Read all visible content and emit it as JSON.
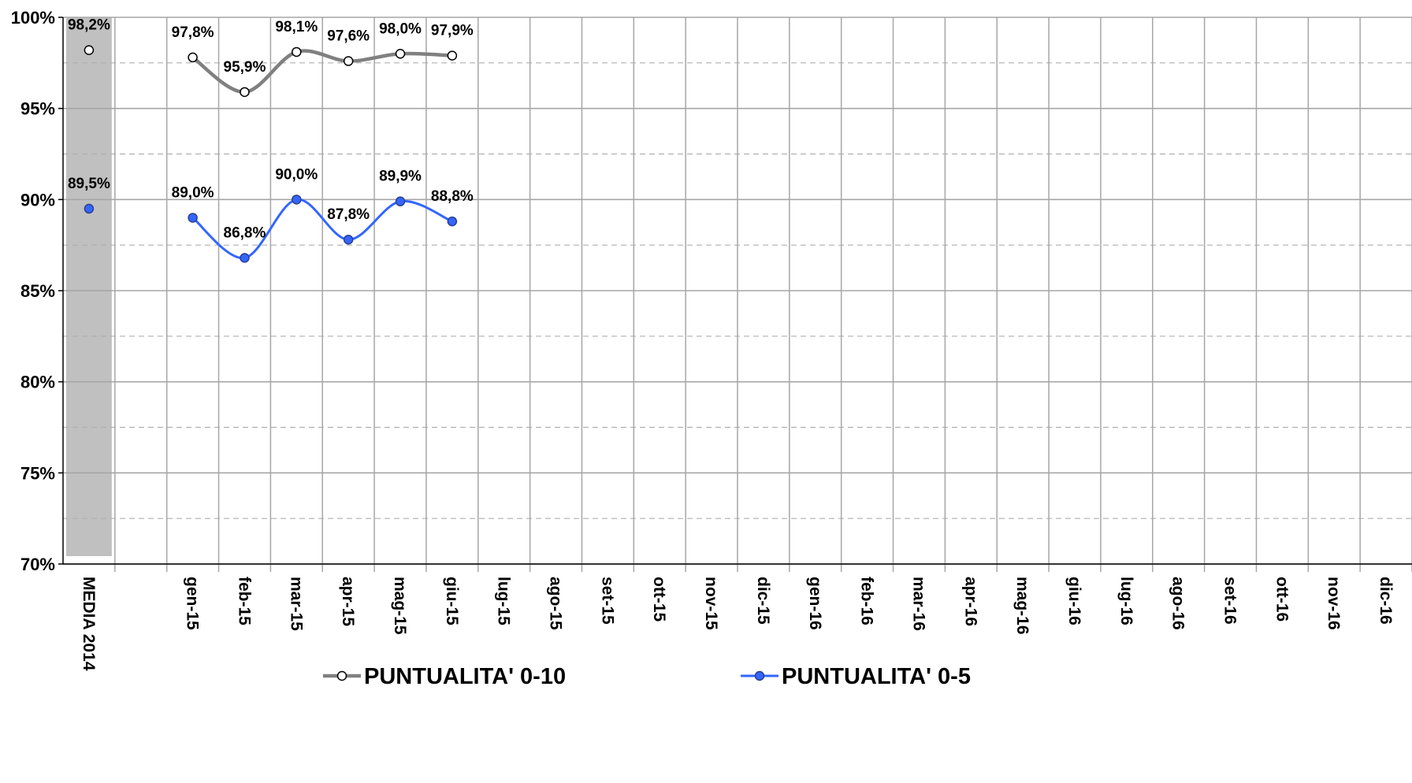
{
  "chart_data": {
    "type": "line",
    "categories": [
      "MEDIA 2014",
      "",
      "gen-15",
      "feb-15",
      "mar-15",
      "apr-15",
      "mag-15",
      "giu-15",
      "lug-15",
      "ago-15",
      "set-15",
      "ott-15",
      "nov-15",
      "dic-15",
      "gen-16",
      "feb-16",
      "mar-16",
      "apr-16",
      "mag-16",
      "giu-16",
      "lug-16",
      "ago-16",
      "set-16",
      "ott-16",
      "nov-16",
      "dic-16"
    ],
    "series": [
      {
        "name": "PUNTUALITA' 0-10",
        "color": "#808080",
        "marker": "open-circle",
        "values": [
          98.2,
          null,
          97.8,
          95.9,
          98.1,
          97.6,
          98.0,
          97.9,
          null,
          null,
          null,
          null,
          null,
          null,
          null,
          null,
          null,
          null,
          null,
          null,
          null,
          null,
          null,
          null,
          null,
          null
        ],
        "labels": [
          "98,2%",
          "",
          "97,8%",
          "95,9%",
          "98,1%",
          "97,6%",
          "98,0%",
          "97,9%",
          "",
          "",
          "",
          "",
          "",
          "",
          "",
          "",
          "",
          "",
          "",
          "",
          "",
          "",
          "",
          "",
          "",
          ""
        ]
      },
      {
        "name": "PUNTUALITA' 0-5",
        "color": "#3366ff",
        "marker": "filled-circle",
        "values": [
          89.5,
          null,
          89.0,
          86.8,
          90.0,
          87.8,
          89.9,
          88.8,
          null,
          null,
          null,
          null,
          null,
          null,
          null,
          null,
          null,
          null,
          null,
          null,
          null,
          null,
          null,
          null,
          null,
          null
        ],
        "labels": [
          "89,5%",
          "",
          "89,0%",
          "86,8%",
          "90,0%",
          "87,8%",
          "89,9%",
          "88,8%",
          "",
          "",
          "",
          "",
          "",
          "",
          "",
          "",
          "",
          "",
          "",
          "",
          "",
          "",
          "",
          "",
          "",
          ""
        ]
      }
    ],
    "ylim": [
      70,
      100
    ],
    "yticks": [
      70,
      75,
      80,
      85,
      90,
      95,
      100
    ],
    "ytick_labels": [
      "70%",
      "75%",
      "80%",
      "85%",
      "90%",
      "95%",
      "100%"
    ],
    "highlight_category": "MEDIA 2014",
    "highlight_color": "#c0c0c0",
    "grid": true,
    "legend_position": "bottom",
    "title": "",
    "xlabel": "",
    "ylabel": ""
  }
}
